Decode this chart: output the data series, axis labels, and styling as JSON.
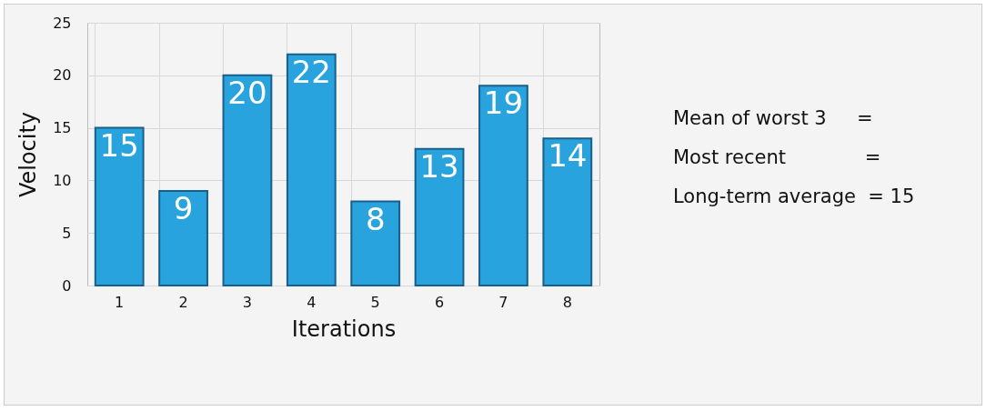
{
  "chart_data": {
    "type": "bar",
    "xlabel": "Iterations",
    "ylabel": "Velocity",
    "categories": [
      "1",
      "2",
      "3",
      "4",
      "5",
      "6",
      "7",
      "8"
    ],
    "values": [
      15,
      9,
      20,
      22,
      8,
      13,
      19,
      14
    ],
    "color": "#29a3dd",
    "ylim": [
      0,
      25
    ],
    "yticks": [
      0,
      5,
      10,
      15,
      20,
      25
    ],
    "grid": true,
    "data_labels": true,
    "annotations": [
      "Mean of worst 3     =",
      "Most recent             =",
      "Long-term average  = 15"
    ]
  }
}
